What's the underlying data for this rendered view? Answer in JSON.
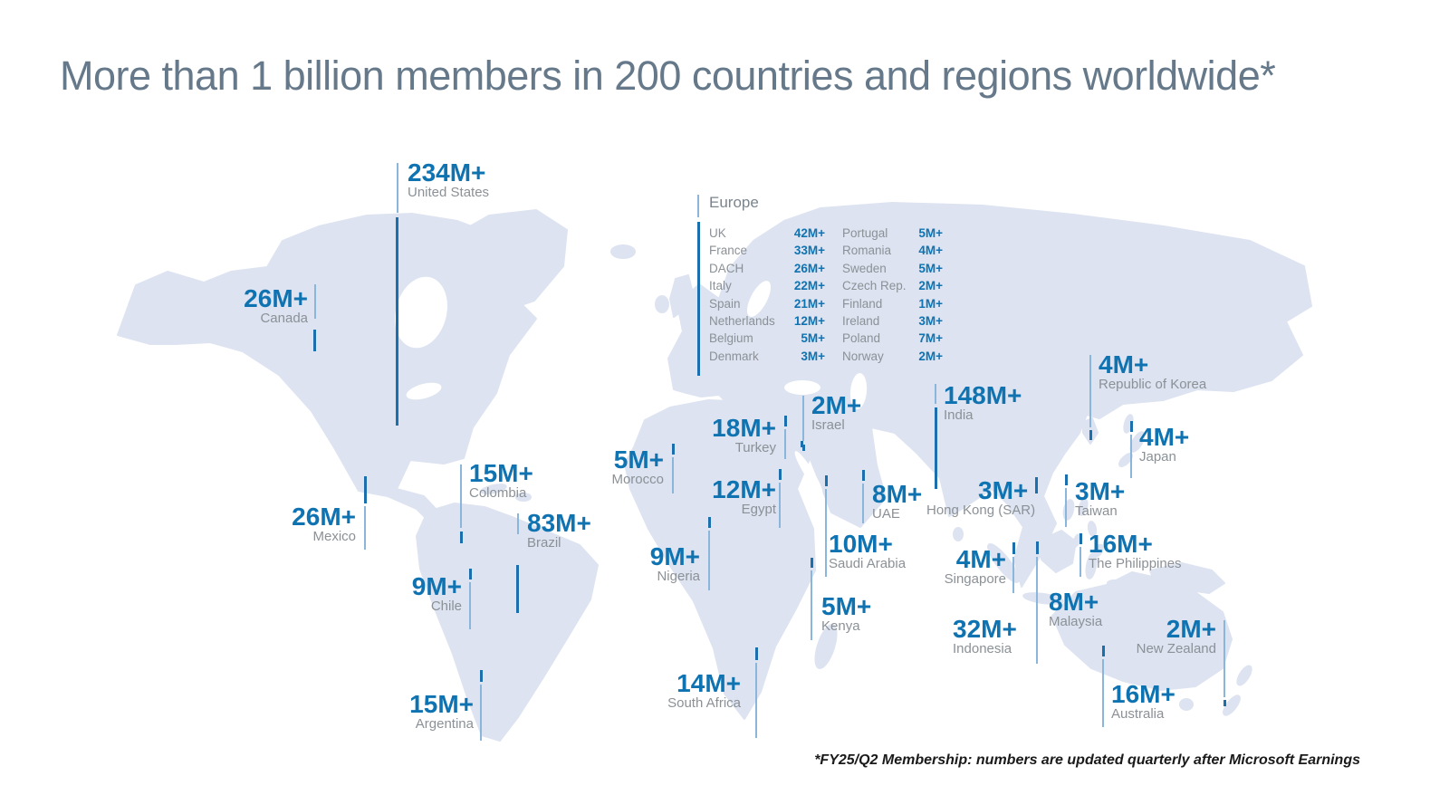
{
  "title": "More than 1 billion members in 200 countries and regions worldwide*",
  "footnote": "*FY25/Q2 Membership: numbers are updated quarterly after Microsoft Earnings",
  "colors": {
    "number_blue": "#0f73b2",
    "line_dark": "#1b6fad",
    "line_light": "#8ab6dc",
    "map_fill": "#dde3f0",
    "label_gray": "#8b9196",
    "header_gray": "#7b848c",
    "title_gray": "#66798a"
  },
  "europe": {
    "header": "Europe",
    "left_column": [
      {
        "name": "UK",
        "value": "42M+"
      },
      {
        "name": "France",
        "value": "33M+"
      },
      {
        "name": "DACH",
        "value": "26M+"
      },
      {
        "name": "Italy",
        "value": "22M+"
      },
      {
        "name": "Spain",
        "value": "21M+"
      },
      {
        "name": "Netherlands",
        "value": "12M+"
      },
      {
        "name": "Belgium",
        "value": "5M+"
      },
      {
        "name": "Denmark",
        "value": "3M+"
      }
    ],
    "right_column": [
      {
        "name": "Portugal",
        "value": "5M+"
      },
      {
        "name": "Romania",
        "value": "4M+"
      },
      {
        "name": "Sweden",
        "value": "5M+"
      },
      {
        "name": "Czech Rep.",
        "value": "2M+"
      },
      {
        "name": "Finland",
        "value": "1M+"
      },
      {
        "name": "Ireland",
        "value": "3M+"
      },
      {
        "name": "Poland",
        "value": "7M+"
      },
      {
        "name": "Norway",
        "value": "2M+"
      }
    ]
  },
  "countries": [
    {
      "id": "united-states",
      "name": "United States",
      "value": "234M+"
    },
    {
      "id": "canada",
      "name": "Canada",
      "value": "26M+"
    },
    {
      "id": "mexico",
      "name": "Mexico",
      "value": "26M+"
    },
    {
      "id": "colombia",
      "name": "Colombia",
      "value": "15M+"
    },
    {
      "id": "brazil",
      "name": "Brazil",
      "value": "83M+"
    },
    {
      "id": "chile",
      "name": "Chile",
      "value": "9M+"
    },
    {
      "id": "argentina",
      "name": "Argentina",
      "value": "15M+"
    },
    {
      "id": "south-africa",
      "name": "South Africa",
      "value": "14M+"
    },
    {
      "id": "morocco",
      "name": "Morocco",
      "value": "5M+"
    },
    {
      "id": "nigeria",
      "name": "Nigeria",
      "value": "9M+"
    },
    {
      "id": "kenya",
      "name": "Kenya",
      "value": "5M+"
    },
    {
      "id": "turkey",
      "name": "Turkey",
      "value": "18M+"
    },
    {
      "id": "israel",
      "name": "Israel",
      "value": "2M+"
    },
    {
      "id": "egypt",
      "name": "Egypt",
      "value": "12M+"
    },
    {
      "id": "uae",
      "name": "UAE",
      "value": "8M+"
    },
    {
      "id": "saudi-arabia",
      "name": "Saudi Arabia",
      "value": "10M+"
    },
    {
      "id": "india",
      "name": "India",
      "value": "148M+"
    },
    {
      "id": "hong-kong",
      "name": "Hong Kong (SAR)",
      "value": "3M+"
    },
    {
      "id": "taiwan",
      "name": "Taiwan",
      "value": "3M+"
    },
    {
      "id": "republic-of-korea",
      "name": "Republic of Korea",
      "value": "4M+"
    },
    {
      "id": "japan",
      "name": "Japan",
      "value": "4M+"
    },
    {
      "id": "philippines",
      "name": "The Philippines",
      "value": "16M+"
    },
    {
      "id": "singapore",
      "name": "Singapore",
      "value": "4M+"
    },
    {
      "id": "malaysia",
      "name": "Malaysia",
      "value": "8M+"
    },
    {
      "id": "indonesia",
      "name": "Indonesia",
      "value": "32M+"
    },
    {
      "id": "new-zealand",
      "name": "New Zealand",
      "value": "2M+"
    },
    {
      "id": "australia",
      "name": "Australia",
      "value": "16M+"
    }
  ],
  "chart_data": {
    "type": "table",
    "title": "More than 1 billion members in 200 countries and regions worldwide*",
    "unit": "millions of members (M+)",
    "categories": [
      "United States",
      "Canada",
      "Mexico",
      "Colombia",
      "Brazil",
      "Chile",
      "Argentina",
      "South Africa",
      "Morocco",
      "Nigeria",
      "Kenya",
      "Turkey",
      "Israel",
      "Egypt",
      "UAE",
      "Saudi Arabia",
      "India",
      "Hong Kong (SAR)",
      "Taiwan",
      "Republic of Korea",
      "Japan",
      "The Philippines",
      "Singapore",
      "Malaysia",
      "Indonesia",
      "New Zealand",
      "Australia",
      "UK",
      "France",
      "DACH",
      "Italy",
      "Spain",
      "Netherlands",
      "Belgium",
      "Denmark",
      "Portugal",
      "Romania",
      "Sweden",
      "Czech Rep.",
      "Finland",
      "Ireland",
      "Poland",
      "Norway"
    ],
    "values": [
      234,
      26,
      26,
      15,
      83,
      9,
      15,
      14,
      5,
      9,
      5,
      18,
      2,
      12,
      8,
      10,
      148,
      3,
      3,
      4,
      4,
      16,
      4,
      8,
      32,
      2,
      16,
      42,
      33,
      26,
      22,
      21,
      12,
      5,
      3,
      5,
      4,
      5,
      2,
      1,
      3,
      7,
      2
    ],
    "display_values": [
      "234M+",
      "26M+",
      "26M+",
      "15M+",
      "83M+",
      "9M+",
      "15M+",
      "14M+",
      "5M+",
      "9M+",
      "5M+",
      "18M+",
      "2M+",
      "12M+",
      "8M+",
      "10M+",
      "148M+",
      "3M+",
      "3M+",
      "4M+",
      "4M+",
      "16M+",
      "4M+",
      "8M+",
      "32M+",
      "2M+",
      "16M+",
      "42M+",
      "33M+",
      "26M+",
      "22M+",
      "21M+",
      "12M+",
      "5M+",
      "3M+",
      "5M+",
      "4M+",
      "5M+",
      "2M+",
      "1M+",
      "3M+",
      "7M+",
      "2M+"
    ],
    "annotations": [
      "*FY25/Q2 Membership: numbers are updated quarterly after Microsoft Earnings"
    ],
    "layout_hint": "annotated world map infographic; values placed as callouts over each country"
  }
}
